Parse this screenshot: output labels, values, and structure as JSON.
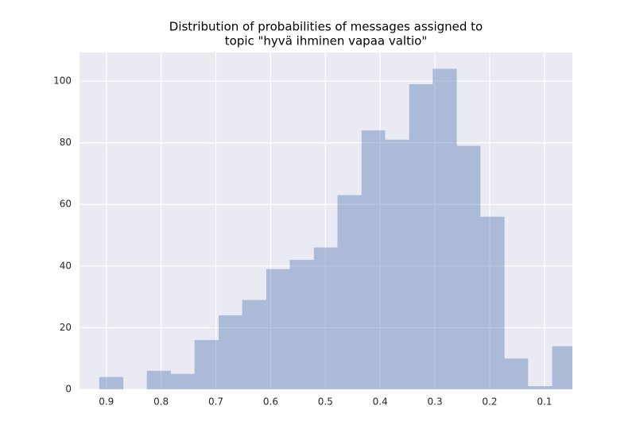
{
  "chart_data": {
    "type": "histogram",
    "title": [
      "Distribution of probabilities of messages assigned to",
      "topic \"hyvä ihminen vapaa valtio\""
    ],
    "bins": [
      0.913,
      0.869,
      0.826,
      0.782,
      0.739,
      0.695,
      0.652,
      0.608,
      0.565,
      0.521,
      0.478,
      0.434,
      0.391,
      0.347,
      0.304,
      0.26,
      0.217,
      0.173,
      0.13,
      0.086,
      0.043
    ],
    "values": [
      4,
      0,
      6,
      5,
      16,
      24,
      29,
      39,
      42,
      46,
      63,
      84,
      81,
      99,
      104,
      79,
      56,
      10,
      1,
      14
    ],
    "color": "#4c72b0",
    "xlim": [
      0.949,
      0.049
    ],
    "xticks": [
      0.9,
      0.8,
      0.7,
      0.6,
      0.5,
      0.4,
      0.3,
      0.2,
      0.1
    ],
    "ylim": [
      0,
      109.3
    ],
    "yticks": [
      0,
      20,
      40,
      60,
      80,
      100
    ],
    "grid": true
  }
}
